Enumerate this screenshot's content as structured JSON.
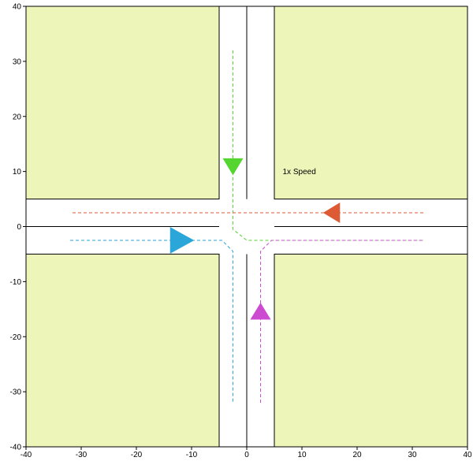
{
  "speed_label": "1x Speed",
  "axes": {
    "xlim": [
      -40,
      40
    ],
    "ylim": [
      -40,
      40
    ],
    "x_ticks": [
      "-40",
      "-30",
      "-20",
      "-10",
      "0",
      "10",
      "20",
      "30",
      "40"
    ],
    "y_ticks": [
      "40",
      "30",
      "20",
      "10",
      "0",
      "-10",
      "-20",
      "-30",
      "-40"
    ],
    "grid": false
  },
  "intersection": {
    "road_half_width": 5,
    "lane_divider": 0,
    "block_color": "#eef5b8",
    "road_color": "#ffffff",
    "line_color": "#000000"
  },
  "vehicles": [
    {
      "name": "green",
      "color": "#55d52f",
      "marker": "triangle-down-icon",
      "position": [
        -2.5,
        11
      ],
      "path": [
        [
          -2.5,
          32
        ],
        [
          -2.5,
          -0.5
        ],
        [
          0,
          -2.5
        ],
        [
          32,
          -2.5
        ]
      ]
    },
    {
      "name": "red",
      "color": "#dd5a35",
      "marker": "triangle-left-icon",
      "position": [
        15.5,
        2.5
      ],
      "path": [
        [
          32,
          2.5
        ],
        [
          -32,
          2.5
        ]
      ]
    },
    {
      "name": "blue",
      "color": "#2aa6d9",
      "marker": "triangle-right-icon",
      "position": [
        -12.5,
        -2.5
      ],
      "path": [
        [
          -32,
          -2.5
        ],
        [
          -4.5,
          -2.5
        ],
        [
          -2.5,
          -4.5
        ],
        [
          -2.5,
          -32
        ]
      ]
    },
    {
      "name": "magenta",
      "color": "#cc4bd0",
      "marker": "triangle-up-icon",
      "position": [
        2.5,
        -15.5
      ],
      "path": [
        [
          2.5,
          -32
        ],
        [
          2.5,
          -4.5
        ],
        [
          4.5,
          -2.5
        ],
        [
          32,
          -2.5
        ]
      ]
    }
  ]
}
